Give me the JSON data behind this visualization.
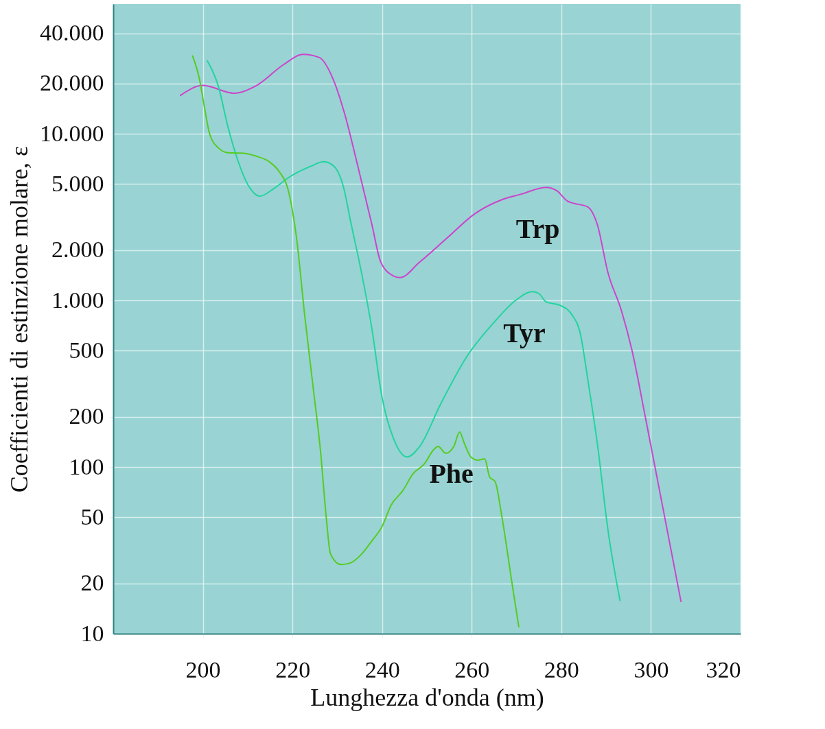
{
  "chart_data": {
    "type": "line",
    "xlabel": "Lunghezza d'onda (nm)",
    "ylabel": "Coefficienti di estinzione molare, ε",
    "xlim": [
      180,
      320
    ],
    "xticks": [
      200,
      220,
      240,
      260,
      280,
      300,
      320
    ],
    "ylim": [
      10,
      60000
    ],
    "log": true,
    "yticks": [
      {
        "value": 10,
        "label": "10"
      },
      {
        "value": 20,
        "label": "20"
      },
      {
        "value": 50,
        "label": "50"
      },
      {
        "value": 100,
        "label": "100"
      },
      {
        "value": 200,
        "label": "200"
      },
      {
        "value": 500,
        "label": "500"
      },
      {
        "value": 1000,
        "label": "1.000"
      },
      {
        "value": 2000,
        "label": "2.000"
      },
      {
        "value": 5000,
        "label": "5.000"
      },
      {
        "value": 10000,
        "label": "10.000"
      },
      {
        "value": 20000,
        "label": "20.000"
      },
      {
        "value": 40000,
        "label": "40.000"
      }
    ],
    "grid": true,
    "line_style": "solid",
    "series": [
      {
        "name": "Trp",
        "color": "#cc44cc",
        "x": [
          195,
          200,
          207,
          212,
          218,
          222.4,
          226,
          229,
          231.6,
          234.7,
          237.7,
          239.7,
          242.6,
          244,
          248.4,
          254.5,
          260.6,
          266.7,
          271,
          276.6,
          279,
          281.4,
          282.7,
          285.8,
          288,
          290.4,
          293.4,
          295.7,
          298.8,
          301.8,
          306.7
        ],
        "values": [
          17000,
          19500,
          17500,
          19500,
          26000,
          30000,
          28700,
          21500,
          13300,
          6200,
          2870,
          1700,
          1400,
          1370,
          1700,
          2370,
          3300,
          4020,
          4340,
          4770,
          4550,
          3940,
          3830,
          3650,
          2870,
          1470,
          870,
          510,
          196,
          75,
          15.6
        ]
      },
      {
        "name": "Tyr",
        "color": "#22d4a0",
        "x": [
          201,
          203.4,
          205.6,
          207.9,
          210.2,
          212.7,
          215.6,
          219.4,
          224,
          227,
          229.3,
          231.3,
          233.1,
          235.4,
          237.7,
          240,
          242.6,
          245.6,
          248.4,
          253,
          259,
          265.2,
          269.8,
          273.6,
          275,
          276.6,
          279.7,
          282.3,
          284.3,
          285.8,
          288.1,
          290.4,
          293.1
        ],
        "values": [
          27400,
          19500,
          11000,
          6800,
          4870,
          4220,
          4640,
          5520,
          6370,
          6800,
          6370,
          4870,
          2870,
          1470,
          681,
          261,
          147,
          115,
          133,
          237,
          464,
          750,
          1000,
          1130,
          1100,
          980,
          935,
          825,
          620,
          350,
          134,
          42,
          15.8
        ]
      },
      {
        "name": "Phe",
        "color": "#55cc22",
        "x": [
          197.7,
          199.2,
          200.3,
          201.5,
          203.4,
          205.6,
          208.7,
          211.8,
          214.8,
          217.1,
          219,
          220.9,
          222.7,
          224.7,
          226.3,
          227.5,
          228.5,
          230.8,
          232.8,
          235.4,
          237.7,
          240,
          242,
          244.6,
          246.9,
          249.5,
          251.5,
          252.5,
          254.2,
          256,
          257.3,
          258.3,
          259.8,
          261.4,
          262.9,
          264,
          265.2,
          266.7,
          269,
          270.5
        ],
        "values": [
          29300,
          21500,
          14700,
          10000,
          8250,
          7700,
          7650,
          7350,
          6800,
          5900,
          4640,
          2370,
          825,
          287,
          121,
          51,
          30,
          26,
          26.5,
          30,
          36,
          44,
          59,
          72,
          91,
          105,
          127,
          133,
          121,
          133,
          162,
          140,
          115,
          110,
          112,
          87,
          82,
          51,
          20,
          11
        ]
      }
    ]
  }
}
